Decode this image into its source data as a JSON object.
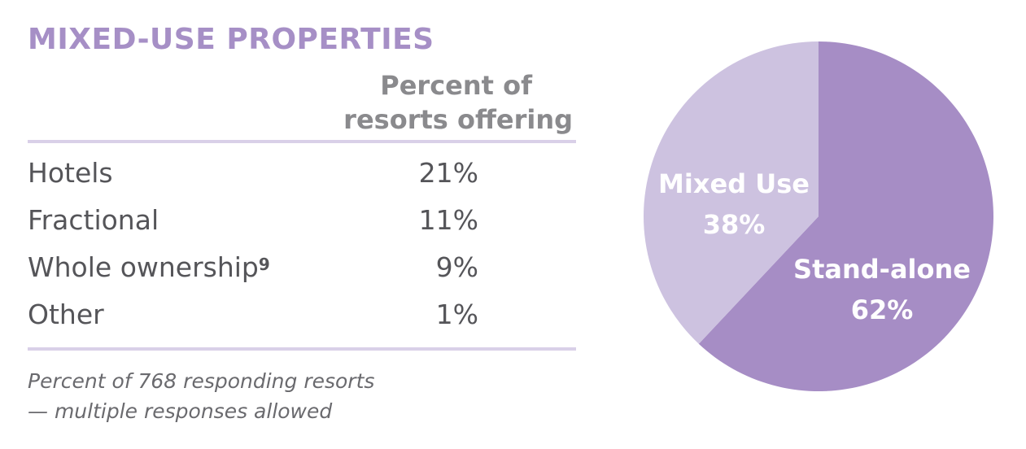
{
  "title": "MIXED-USE PROPERTIES",
  "table": {
    "header_line1": "Percent of",
    "header_line2": "resorts offering",
    "rows": [
      {
        "label": "Hotels",
        "value": "21%"
      },
      {
        "label": "Fractional",
        "value": "11%"
      },
      {
        "label": "Whole ownership",
        "footnote": "9",
        "value": "9%"
      },
      {
        "label": "Other",
        "value": "1%"
      }
    ]
  },
  "note": {
    "line1": "Percent of 768 responding resorts",
    "line2": "— multiple responses allowed"
  },
  "colors": {
    "accent": "#a68fc6",
    "stand_alone": "#a68dc5",
    "mixed_use": "#cdc2e0"
  },
  "chart_data": [
    {
      "type": "table",
      "title": "MIXED-USE PROPERTIES",
      "columns": [
        "",
        "Percent of resorts offering"
      ],
      "rows": [
        [
          "Hotels",
          21
        ],
        [
          "Fractional",
          11
        ],
        [
          "Whole ownership",
          9
        ],
        [
          "Other",
          1
        ]
      ],
      "unit": "%",
      "note": "Percent of 768 responding resorts — multiple responses allowed"
    },
    {
      "type": "pie",
      "slices": [
        {
          "label": "Stand-alone",
          "value": 62,
          "value_label": "62%",
          "color": "#a68dc5"
        },
        {
          "label": "Mixed Use",
          "value": 38,
          "value_label": "38%",
          "color": "#cdc2e0"
        }
      ]
    }
  ]
}
